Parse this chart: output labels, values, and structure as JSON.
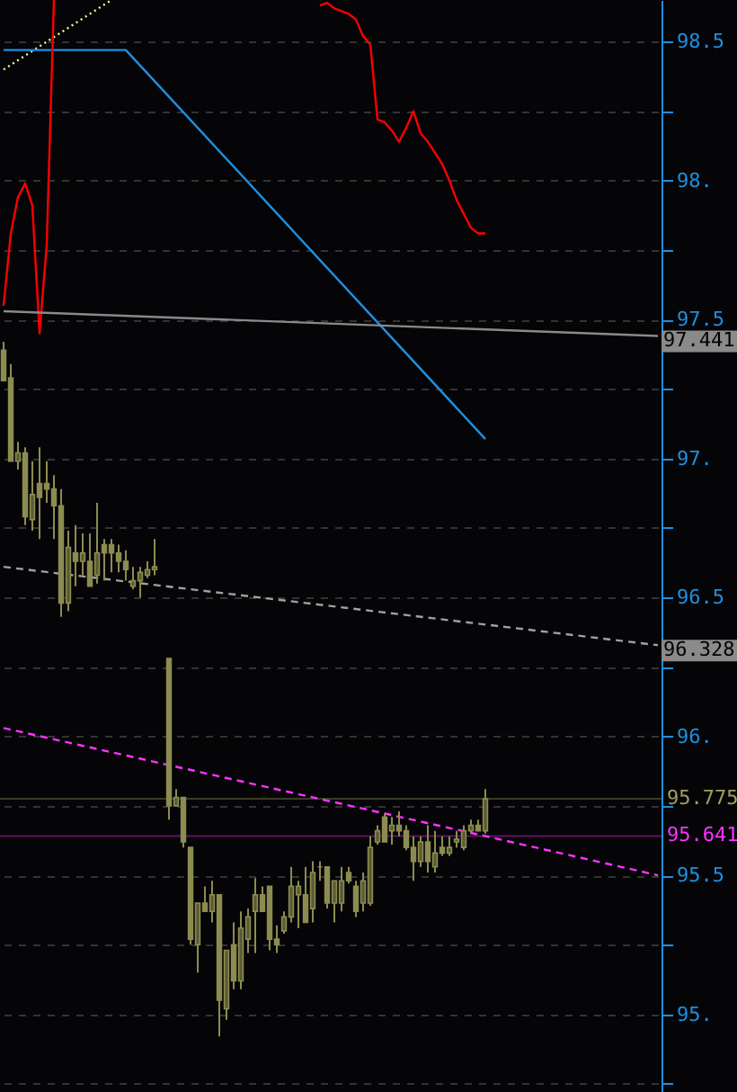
{
  "chart_data": {
    "type": "candlestick",
    "color": "#8c8c50",
    "categories": [
      null,
      null,
      null,
      null,
      null,
      null,
      null,
      null,
      null,
      null,
      null,
      null,
      null,
      null,
      null,
      null,
      null,
      null,
      null,
      null,
      null,
      null,
      null,
      null,
      null,
      null,
      null,
      null,
      null,
      null,
      null,
      null,
      null,
      null,
      null,
      null,
      null,
      null,
      null,
      null,
      null,
      null,
      null,
      null,
      null,
      null,
      null,
      null,
      null,
      null,
      null,
      null,
      null,
      null,
      null,
      null,
      null,
      null,
      null,
      null,
      null,
      null,
      null,
      null,
      null,
      null,
      null,
      null,
      null,
      null,
      null,
      null,
      null,
      null,
      null,
      null,
      null,
      null,
      null,
      null,
      null,
      null,
      null,
      null,
      null,
      null,
      null,
      null,
      null,
      null,
      null,
      null
    ],
    "ohlc": [
      [
        97.39,
        97.42,
        97.28,
        97.28
      ],
      [
        97.29,
        97.34,
        96.99,
        96.99
      ],
      [
        96.99,
        97.06,
        96.96,
        97.02
      ],
      [
        97.02,
        97.04,
        96.76,
        96.79
      ],
      [
        96.78,
        96.99,
        96.74,
        96.87
      ],
      [
        96.91,
        97.04,
        96.71,
        96.86
      ],
      [
        96.91,
        96.99,
        96.84,
        96.89
      ],
      [
        96.89,
        96.94,
        96.71,
        96.83
      ],
      [
        96.83,
        96.89,
        96.43,
        96.48
      ],
      [
        96.48,
        96.74,
        96.45,
        96.68
      ],
      [
        96.66,
        96.76,
        96.54,
        96.63
      ],
      [
        96.63,
        96.73,
        96.58,
        96.66
      ],
      [
        96.63,
        96.73,
        96.54,
        96.54
      ],
      [
        96.58,
        96.84,
        96.55,
        96.66
      ],
      [
        96.69,
        96.71,
        96.56,
        96.66
      ],
      [
        96.69,
        96.71,
        96.59,
        96.66
      ],
      [
        96.66,
        96.69,
        96.59,
        96.63
      ],
      [
        96.63,
        96.67,
        96.56,
        96.6
      ],
      [
        96.54,
        96.61,
        96.53,
        96.56
      ],
      [
        96.56,
        96.61,
        96.5,
        96.59
      ],
      [
        96.58,
        96.63,
        96.57,
        96.6
      ],
      [
        96.6,
        96.71,
        96.58,
        96.61
      ],
      null,
      [
        96.28,
        96.28,
        95.7,
        95.75
      ],
      [
        95.75,
        95.81,
        95.75,
        95.78
      ],
      [
        95.78,
        95.78,
        95.6,
        95.62
      ],
      [
        95.6,
        95.6,
        95.25,
        95.27
      ],
      [
        95.25,
        95.4,
        95.15,
        95.4
      ],
      [
        95.4,
        95.46,
        95.37,
        95.37
      ],
      [
        95.37,
        95.48,
        95.33,
        95.43
      ],
      [
        95.43,
        95.43,
        94.92,
        95.05
      ],
      [
        95.02,
        95.23,
        94.98,
        95.23
      ],
      [
        95.25,
        95.33,
        95.09,
        95.12
      ],
      [
        95.12,
        95.37,
        95.09,
        95.31
      ],
      [
        95.27,
        95.38,
        95.22,
        95.35
      ],
      [
        95.37,
        95.49,
        95.22,
        95.43
      ],
      [
        95.43,
        95.46,
        95.37,
        95.37
      ],
      [
        95.46,
        95.46,
        95.23,
        95.27
      ],
      [
        95.27,
        95.32,
        95.22,
        95.25
      ],
      [
        95.3,
        95.37,
        95.29,
        95.35
      ],
      [
        95.35,
        95.53,
        95.33,
        95.46
      ],
      [
        95.43,
        95.48,
        95.31,
        95.46
      ],
      [
        95.43,
        95.53,
        95.33,
        95.33
      ],
      [
        95.38,
        95.55,
        95.33,
        95.51
      ],
      [
        95.53,
        95.55,
        95.48,
        95.53
      ],
      [
        95.53,
        95.53,
        95.38,
        95.4
      ],
      [
        95.4,
        95.48,
        95.33,
        95.48
      ],
      [
        95.4,
        95.53,
        95.37,
        95.48
      ],
      [
        95.51,
        95.53,
        95.47,
        95.48
      ],
      [
        95.46,
        95.48,
        95.35,
        95.37
      ],
      [
        95.4,
        95.51,
        95.37,
        95.48
      ],
      [
        95.4,
        95.64,
        95.39,
        95.6
      ],
      [
        95.62,
        95.68,
        95.61,
        95.66
      ],
      [
        95.71,
        95.72,
        95.62,
        95.62
      ],
      [
        95.66,
        95.71,
        95.61,
        95.68
      ],
      [
        95.68,
        95.73,
        95.64,
        95.66
      ],
      [
        95.66,
        95.68,
        95.59,
        95.6
      ],
      [
        95.6,
        95.64,
        95.48,
        95.55
      ],
      [
        95.55,
        95.64,
        95.53,
        95.62
      ],
      [
        95.62,
        95.68,
        95.51,
        95.55
      ],
      [
        95.53,
        95.66,
        95.51,
        95.58
      ],
      [
        95.6,
        95.64,
        95.57,
        95.58
      ],
      [
        95.58,
        95.64,
        95.57,
        95.6
      ],
      [
        95.62,
        95.66,
        95.6,
        95.63
      ],
      [
        95.6,
        95.68,
        95.59,
        95.66
      ],
      [
        95.66,
        95.7,
        95.65,
        95.68
      ],
      [
        95.68,
        95.7,
        95.66,
        95.66
      ],
      [
        95.66,
        95.81,
        95.65,
        95.775
      ],
      null,
      null,
      null,
      null,
      null,
      null,
      null,
      null,
      null,
      null,
      null,
      null,
      null,
      null,
      null,
      null,
      null,
      null,
      null,
      null,
      null,
      null,
      null,
      null
    ],
    "series": [
      {
        "type": "line",
        "color": "#ffff99",
        "line_style": "dotted",
        "values": [
          98.4,
          null,
          null,
          null,
          null,
          null,
          null,
          null,
          null,
          null,
          null,
          null,
          null,
          null,
          null,
          98.65,
          null,
          null,
          null,
          null,
          null,
          null,
          null,
          null,
          null,
          null,
          null,
          null,
          null,
          null,
          null,
          null,
          null,
          null,
          null,
          null,
          null,
          null,
          null,
          null,
          null,
          null,
          null,
          null,
          null,
          null,
          null,
          null,
          null,
          null,
          null,
          null,
          null,
          null,
          null,
          null,
          null,
          null,
          null,
          null,
          null,
          null,
          null,
          null,
          null,
          null,
          null,
          null,
          null,
          null,
          null,
          null,
          null,
          null,
          null,
          null,
          null,
          null,
          null,
          null,
          null,
          null,
          null,
          null,
          null,
          null,
          null,
          null,
          null,
          null,
          null,
          null
        ]
      },
      {
        "type": "line",
        "color": "#1e90e0",
        "values": [
          98.47,
          null,
          null,
          null,
          null,
          null,
          null,
          null,
          null,
          null,
          null,
          null,
          null,
          null,
          null,
          null,
          null,
          98.47,
          null,
          null,
          null,
          null,
          null,
          null,
          null,
          null,
          null,
          null,
          null,
          null,
          null,
          null,
          null,
          null,
          null,
          null,
          null,
          null,
          null,
          null,
          null,
          null,
          null,
          null,
          null,
          null,
          null,
          null,
          null,
          null,
          null,
          null,
          null,
          null,
          null,
          null,
          null,
          null,
          null,
          null,
          null,
          null,
          null,
          null,
          null,
          null,
          null,
          97.07,
          null,
          null,
          null,
          null,
          null,
          null,
          null,
          null,
          null,
          null,
          null,
          null,
          null,
          null,
          null,
          null,
          null,
          null,
          null,
          null,
          null,
          null,
          null,
          null
        ]
      },
      {
        "type": "line",
        "color": "#ff0000",
        "values": [
          97.55,
          97.81,
          97.94,
          97.99,
          97.91,
          97.45,
          97.77,
          98.65,
          null,
          null,
          null,
          null,
          null,
          null,
          null,
          null,
          null,
          null,
          null,
          null,
          null,
          null,
          null,
          null,
          null,
          null,
          null,
          null,
          null,
          null,
          null,
          null,
          null,
          null,
          null,
          null,
          null,
          null,
          null,
          null,
          null,
          null,
          null,
          null,
          null,
          null,
          null,
          null,
          null,
          null,
          null,
          null,
          null,
          null,
          null,
          null,
          null,
          null,
          null,
          null,
          null,
          null,
          null,
          null,
          null,
          null,
          null,
          null,
          null,
          null,
          null,
          null,
          null,
          null,
          null,
          null,
          null,
          null,
          null,
          null,
          null,
          null,
          null,
          null,
          null,
          null,
          null,
          null,
          null,
          null,
          null,
          null
        ]
      },
      {
        "type": "line",
        "color": "#ff0000",
        "values": [
          null,
          null,
          null,
          null,
          null,
          null,
          null,
          null,
          null,
          null,
          null,
          null,
          null,
          null,
          null,
          null,
          null,
          null,
          null,
          null,
          null,
          null,
          null,
          null,
          null,
          null,
          null,
          null,
          null,
          null,
          null,
          null,
          null,
          null,
          null,
          null,
          null,
          null,
          null,
          null,
          null,
          null,
          null,
          null,
          98.63,
          98.64,
          98.62,
          98.61,
          98.6,
          98.58,
          98.52,
          98.49,
          98.22,
          98.21,
          98.18,
          98.14,
          98.19,
          98.25,
          98.17,
          98.14,
          98.1,
          98.06,
          98.0,
          97.93,
          97.88,
          97.83,
          97.81,
          97.81,
          null,
          null,
          null,
          null,
          null,
          null,
          null,
          null,
          null,
          null,
          null,
          null,
          null,
          null,
          null,
          null,
          null,
          null,
          null,
          null,
          null,
          null,
          null,
          null
        ]
      },
      {
        "type": "line",
        "color": "#8a8a8a",
        "values": [
          97.53,
          null,
          null,
          null,
          null,
          null,
          null,
          null,
          null,
          null,
          null,
          null,
          null,
          null,
          null,
          null,
          null,
          null,
          null,
          null,
          null,
          null,
          null,
          null,
          null,
          null,
          null,
          null,
          null,
          null,
          null,
          null,
          null,
          null,
          null,
          null,
          null,
          null,
          null,
          null,
          null,
          null,
          null,
          null,
          null,
          null,
          null,
          null,
          null,
          null,
          null,
          null,
          null,
          null,
          null,
          null,
          null,
          null,
          null,
          null,
          null,
          null,
          null,
          null,
          null,
          null,
          null,
          null,
          null,
          null,
          null,
          null,
          null,
          null,
          null,
          null,
          null,
          null,
          null,
          null,
          null,
          null,
          null,
          null,
          null,
          null,
          null,
          null,
          null,
          null,
          null,
          97.441
        ],
        "value_labels": [
          null,
          null,
          null,
          null,
          null,
          null,
          null,
          null,
          null,
          null,
          null,
          null,
          null,
          null,
          null,
          null,
          null,
          null,
          null,
          null,
          null,
          null,
          null,
          null,
          null,
          null,
          null,
          null,
          null,
          null,
          null,
          null,
          null,
          null,
          null,
          null,
          null,
          null,
          null,
          null,
          null,
          null,
          null,
          null,
          null,
          null,
          null,
          null,
          null,
          null,
          null,
          null,
          null,
          null,
          null,
          null,
          null,
          null,
          null,
          null,
          null,
          null,
          null,
          null,
          null,
          null,
          null,
          null,
          null,
          null,
          null,
          null,
          null,
          null,
          null,
          null,
          null,
          null,
          null,
          null,
          null,
          null,
          null,
          null,
          null,
          null,
          null,
          null,
          null,
          null,
          null,
          "97.441"
        ]
      },
      {
        "type": "line",
        "color": "#a0a0a0",
        "line_style": "dashed",
        "values": [
          96.61,
          null,
          null,
          null,
          null,
          null,
          null,
          null,
          null,
          null,
          null,
          null,
          null,
          null,
          null,
          null,
          null,
          null,
          null,
          null,
          null,
          null,
          null,
          null,
          null,
          null,
          null,
          null,
          null,
          null,
          null,
          null,
          null,
          null,
          null,
          null,
          null,
          null,
          null,
          null,
          null,
          null,
          null,
          null,
          null,
          null,
          null,
          null,
          null,
          null,
          null,
          null,
          null,
          null,
          null,
          null,
          null,
          null,
          null,
          null,
          null,
          null,
          null,
          null,
          null,
          null,
          null,
          null,
          null,
          null,
          null,
          null,
          null,
          null,
          null,
          null,
          null,
          null,
          null,
          null,
          null,
          null,
          null,
          null,
          null,
          null,
          null,
          null,
          null,
          null,
          null,
          96.328
        ],
        "value_labels": [
          null,
          null,
          null,
          null,
          null,
          null,
          null,
          null,
          null,
          null,
          null,
          null,
          null,
          null,
          null,
          null,
          null,
          null,
          null,
          null,
          null,
          null,
          null,
          null,
          null,
          null,
          null,
          null,
          null,
          null,
          null,
          null,
          null,
          null,
          null,
          null,
          null,
          null,
          null,
          null,
          null,
          null,
          null,
          null,
          null,
          null,
          null,
          null,
          null,
          null,
          null,
          null,
          null,
          null,
          null,
          null,
          null,
          null,
          null,
          null,
          null,
          null,
          null,
          null,
          null,
          null,
          null,
          null,
          null,
          null,
          null,
          null,
          null,
          null,
          null,
          null,
          null,
          null,
          null,
          null,
          null,
          null,
          null,
          null,
          null,
          null,
          null,
          null,
          null,
          null,
          null,
          "96.328"
        ]
      },
      {
        "type": "line",
        "color": "#ff33ff",
        "line_style": "dashed",
        "values": [
          96.03,
          null,
          null,
          null,
          null,
          null,
          null,
          null,
          null,
          null,
          null,
          null,
          null,
          null,
          null,
          null,
          null,
          null,
          null,
          null,
          null,
          null,
          null,
          null,
          null,
          null,
          null,
          null,
          null,
          null,
          null,
          null,
          null,
          null,
          null,
          null,
          null,
          null,
          null,
          null,
          null,
          null,
          null,
          null,
          null,
          null,
          null,
          null,
          null,
          null,
          null,
          null,
          null,
          null,
          null,
          null,
          null,
          null,
          null,
          null,
          null,
          null,
          null,
          null,
          null,
          null,
          null,
          95.641,
          null,
          null,
          null,
          null,
          null,
          null,
          null,
          null,
          null,
          null,
          null,
          null,
          null,
          null,
          null,
          null,
          null,
          null,
          null,
          null,
          null,
          null,
          null,
          95.5
        ]
      }
    ],
    "ref_lines": [
      {
        "axis": "y",
        "value": 95.775,
        "label": "95.775",
        "color": "#a0a060"
      },
      {
        "axis": "y",
        "value": 95.641,
        "label": "95.641",
        "color": "#ff33ff"
      }
    ],
    "ylim": [
      94.72,
      98.65
    ],
    "yticks": [
      {
        "value": 94.75,
        "label": null
      },
      {
        "value": 95,
        "label": "95."
      },
      {
        "value": 95.25,
        "label": null
      },
      {
        "value": 95.5,
        "label": "95.5"
      },
      {
        "value": 95.75,
        "label": null
      },
      {
        "value": 96,
        "label": "96."
      },
      {
        "value": 96.25,
        "label": null
      },
      {
        "value": 96.5,
        "label": "96.5"
      },
      {
        "value": 96.75,
        "label": null
      },
      {
        "value": 97,
        "label": "97."
      },
      {
        "value": 97.25,
        "label": null
      },
      {
        "value": 97.5,
        "label": "97.5"
      },
      {
        "value": 97.75,
        "label": null
      },
      {
        "value": 98,
        "label": "98."
      },
      {
        "value": 98.25,
        "label": null
      },
      {
        "value": 98.5,
        "label": "98.5"
      }
    ],
    "grid": "y"
  }
}
